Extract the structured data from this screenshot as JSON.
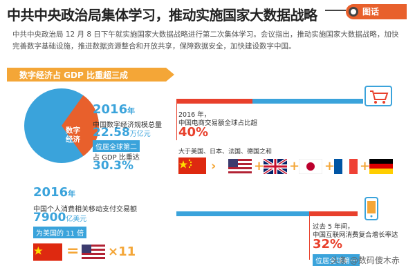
{
  "headline": "中共中央政治局集体学习，推动实施国家大数据战略",
  "tag": "图话",
  "intro": "中共中央政治局 12 月 8 日下午就实施国家大数据战略进行第二次集体学习。会议指出，推动实施国家大数据战略，加快完善数字基础设施，推进数据资源整合和开放共享，保障数据安全，加快建设数字中国。",
  "banner": "数字经济占 GDP 比重超三成",
  "pie": {
    "label_line1": "数字",
    "label_line2": "经济",
    "share_pct": 30.3,
    "color_main": "#3aa3db",
    "color_slice": "#e8602c"
  },
  "digital_economy": {
    "year": "2016",
    "year_suffix": "年",
    "total_label": "中国数字经济规模总量",
    "total_value": "22.58",
    "total_unit": "万亿元",
    "rank_badge": "位居全球第二",
    "gdp_label": "占 GDP 比重达",
    "gdp_value": "30.3%"
  },
  "ecommerce": {
    "caption_line1": "2016 年，",
    "caption_line2": "中国电商交易额全球占比超",
    "value": "40%",
    "compare_text": "大于美国、日本、法国、德国之和"
  },
  "mobile_pay": {
    "year": "2016",
    "year_suffix": "年",
    "label": "中国个人消费相关移动支付交易额",
    "value": "7900",
    "unit": "亿美元",
    "badge": "为美国的 11 倍",
    "multiplier": "×11"
  },
  "online_retail": {
    "caption_line1": "过去 5 年间，",
    "caption_line2": "中国互联网消费复合增长率达",
    "value": "32%",
    "rank_badge": "位居全球第一"
  },
  "watermark": "头条 @数码傻木赤"
}
